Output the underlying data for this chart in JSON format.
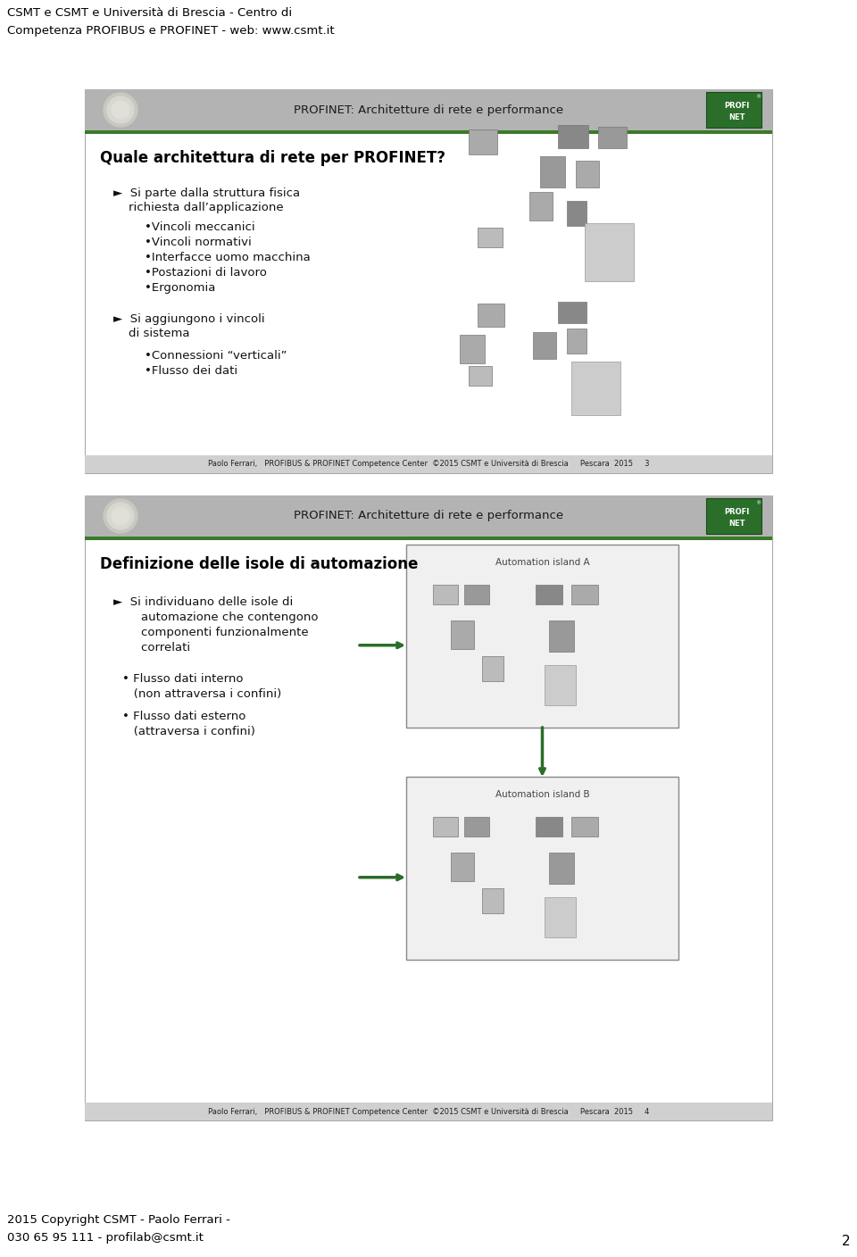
{
  "page_bg": "#ffffff",
  "header_text_top_line1": "CSMT e CSMT e Università di Brescia - Centro di",
  "header_text_top_line2": "Competenza PROFIBUS e PROFINET - web: www.csmt.it",
  "footer_text_line1": "2015 Copyright CSMT - Paolo Ferrari -",
  "footer_text_line2": "030 65 95 111 - profilab@csmt.it",
  "footer_page_num": "2",
  "slide1": {
    "header_bg": "#b3b3b3",
    "header_title": "PROFINET: Architetture di rete e performance",
    "header_title_color": "#1a1a1a",
    "green_line_color": "#3a7a2a",
    "slide_title": "Quale architettura di rete per PROFINET?",
    "slide_title_color": "#000000",
    "bullet1_line1": "►  Si parte dalla struttura fisica",
    "bullet1_line2": "    richiesta dall’applicazione",
    "sub_bullets1": [
      "•Vincoli meccanici",
      "•Vincoli normativi",
      "•Interfacce uomo macchina",
      "•Postazioni di lavoro",
      "•Ergonomia"
    ],
    "bullet2_line1": "►  Si aggiungono i vincoli",
    "bullet2_line2": "    di sistema",
    "sub_bullets2": [
      "•Connessioni “verticali”",
      "•Flusso dei dati"
    ],
    "footer_bar_text": "Paolo Ferrari,   PROFIBUS & PROFINET Competence Center  ©2015 CSMT e Università di Brescia     Pescara  2015     3",
    "footer_bar_bg": "#d0d0d0"
  },
  "slide2": {
    "header_bg": "#b3b3b3",
    "header_title": "PROFINET: Architetture di rete e performance",
    "header_title_color": "#1a1a1a",
    "green_line_color": "#3a7a2a",
    "slide_title": "Definizione delle isole di automazione",
    "slide_title_color": "#000000",
    "bullet1_line1": "►  Si individuano delle isole di",
    "bullet1_line2": "    automazione che contengono",
    "bullet1_line3": "    componenti funzionalmente",
    "bullet1_line4": "    correlati",
    "sub_bullet_a_line1": "• Flusso dati interno",
    "sub_bullet_a_line2": "   (non attraversa i confini)",
    "sub_bullet_b_line1": "• Flusso dati esterno",
    "sub_bullet_b_line2": "   (attraversa i confini)",
    "island_a_label": "Automation island A",
    "island_b_label": "Automation island B",
    "footer_bar_text": "Paolo Ferrari,   PROFIBUS & PROFINET Competence Center  ©2015 CSMT e Università di Brescia     Pescara  2015     4",
    "footer_bar_bg": "#d0d0d0"
  }
}
